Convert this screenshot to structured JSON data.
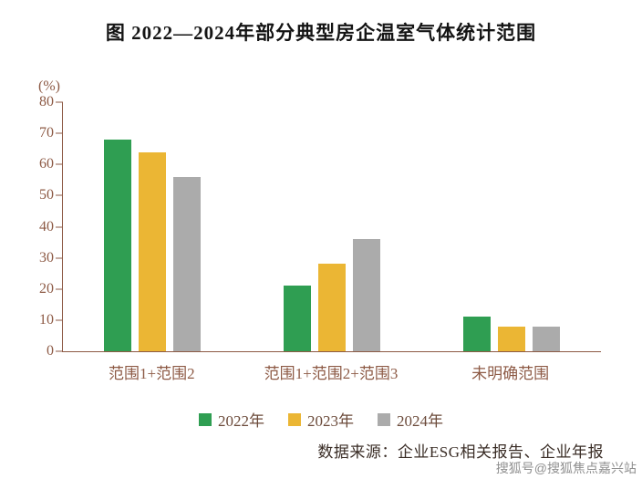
{
  "chart_data": {
    "type": "bar",
    "title": "图  2022—2024年部分典型房企温室气体统计范围",
    "unit": "(%)",
    "categories": [
      "范围1+范围2",
      "范围1+范围2+范围3",
      "未明确范围"
    ],
    "series": [
      {
        "name": "2022年",
        "color": "#2F9E52",
        "values": [
          68,
          21,
          11
        ]
      },
      {
        "name": "2023年",
        "color": "#EBB634",
        "values": [
          64,
          28,
          8
        ]
      },
      {
        "name": "2024年",
        "color": "#ABABAB",
        "values": [
          56,
          36,
          8
        ]
      }
    ],
    "ylim": [
      0,
      80
    ],
    "yticks": [
      0,
      10,
      20,
      30,
      40,
      50,
      60,
      70,
      80
    ],
    "grid": false,
    "legend_position": "bottom",
    "source": "数据来源：企业ESG相关报告、企业年报"
  },
  "watermark": "搜狐号@搜狐焦点嘉兴站",
  "colors": {
    "axis_text": "#8d5a45",
    "title_text": "#141414",
    "source_text": "#3a2d26",
    "watermark_text": "#8f8f8f"
  }
}
